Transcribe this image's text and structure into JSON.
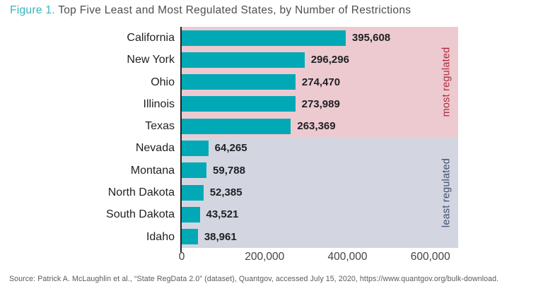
{
  "title": {
    "prefix": "Figure 1.",
    "text": " Top Five Least and Most Regulated States, by Number of Restrictions"
  },
  "chart_data": {
    "type": "bar",
    "orientation": "horizontal",
    "title": "Top Five Least and Most Regulated States, by Number of Restrictions",
    "xlabel": "",
    "ylabel": "",
    "categories": [
      "California",
      "New York",
      "Ohio",
      "Illinois",
      "Texas",
      "Nevada",
      "Montana",
      "North Dakota",
      "South Dakota",
      "Idaho"
    ],
    "values": [
      395608,
      296296,
      274470,
      273989,
      263369,
      64265,
      59788,
      52385,
      43521,
      38961
    ],
    "value_labels": [
      "395,608",
      "296,296",
      "274,470",
      "273,989",
      "263,369",
      "64,265",
      "59,788",
      "52,385",
      "43,521",
      "38,961"
    ],
    "groups": [
      {
        "label": "most regulated",
        "rows": 5,
        "band_color": "#eccad0",
        "label_color": "#b12a3d"
      },
      {
        "label": "least regulated",
        "rows": 5,
        "band_color": "#d3d6e0",
        "label_color": "#3f5070"
      }
    ],
    "x_ticks": [
      {
        "value": 0,
        "label": "0"
      },
      {
        "value": 200000,
        "label": "200,000"
      },
      {
        "value": 400000,
        "label": "400,000"
      },
      {
        "value": 600000,
        "label": "600,000"
      }
    ],
    "xlim": [
      0,
      667000
    ],
    "bar_color": "#00a9b5",
    "grid": false,
    "legend_position": "right-rotated"
  },
  "source": "Source: Patrick A. McLaughlin et al., “State RegData 2.0” (dataset), Quantgov, accessed July 15, 2020, https://www.quantgov.org/bulk-download."
}
